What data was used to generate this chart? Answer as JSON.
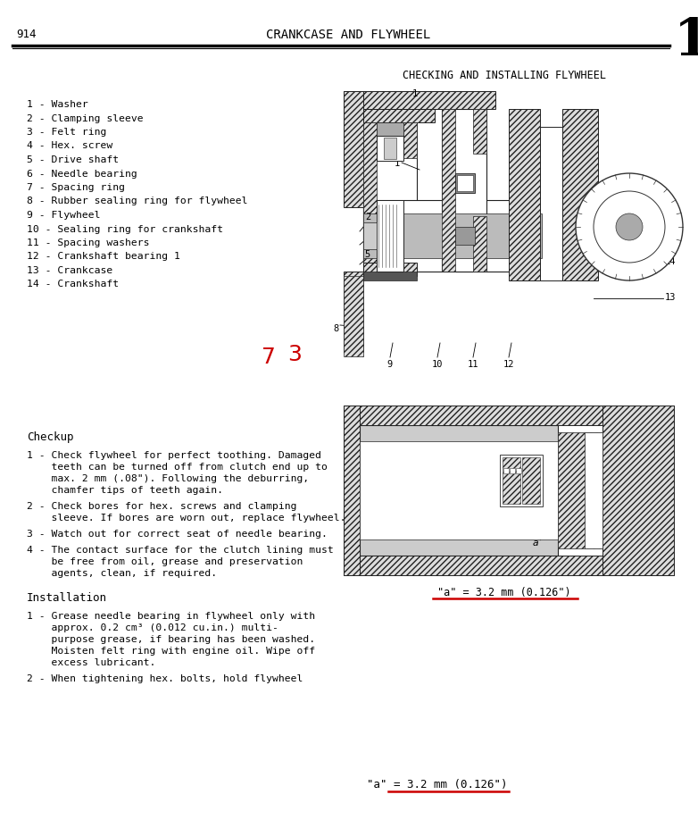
{
  "page_number": "914",
  "header_title": "CRANKCASE AND FLYWHEEL",
  "section_title": "CHECKING AND INSTALLING FLYWHEEL",
  "tab_number": "1",
  "parts_list": [
    "1 - Washer",
    "2 - Clamping sleeve",
    "3 - Felt ring",
    "4 - Hex. screw",
    "5 - Drive shaft",
    "6 - Needle bearing",
    "7 - Spacing ring",
    "8 - Rubber sealing ring for flywheel",
    "9 - Flywheel",
    "10 - Sealing ring for crankshaft",
    "11 - Spacing washers",
    "12 - Crankshaft bearing 1",
    "13 - Crankcase",
    "14 - Crankshaft"
  ],
  "checkup_title": "Checkup",
  "checkup_items": [
    [
      "1 - Check flywheel for perfect toothing. Damaged",
      "    teeth can be turned off from clutch end up to",
      "    max. 2 mm (.08\"). Following the deburring,",
      "    chamfer tips of teeth again."
    ],
    [
      "2 - Check bores for hex. screws and clamping",
      "    sleeve. If bores are worn out, replace flywheel."
    ],
    [
      "3 - Watch out for correct seat of needle bearing."
    ],
    [
      "4 - The contact surface for the clutch lining must",
      "    be free from oil, grease and preservation",
      "    agents, clean, if required."
    ]
  ],
  "installation_title": "Installation",
  "installation_items": [
    [
      "1 - Grease needle bearing in flywheel only with",
      "    approx. 0.2 cm³ (0.012 cu.in.) multi-",
      "    purpose grease, if bearing has been washed.",
      "    Moisten felt ring with engine oil. Wipe off",
      "    excess lubricant."
    ],
    [
      "2 - When tightening hex. bolts, hold flywheel"
    ]
  ],
  "dimension_label": "\"a\" = 3.2 mm (0.126\")",
  "bg_color": "#ffffff",
  "text_color": "#000000",
  "red_color": "#cc0000"
}
